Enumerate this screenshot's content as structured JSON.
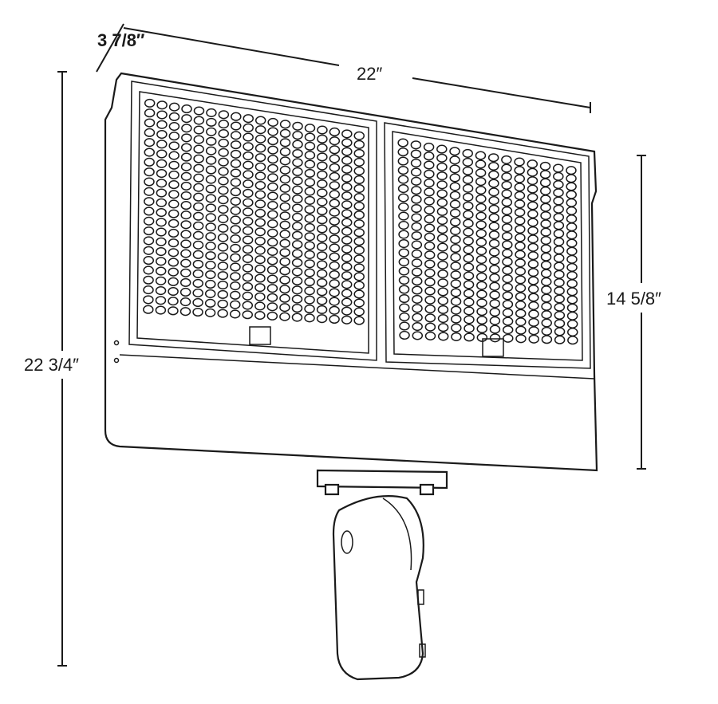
{
  "dimensions": {
    "depth": "3 7/8″",
    "width": "22″",
    "head_height": "14 5/8″",
    "overall_height": "22 3/4″"
  },
  "colors": {
    "line": "#1a1a1a",
    "background": "#ffffff"
  }
}
